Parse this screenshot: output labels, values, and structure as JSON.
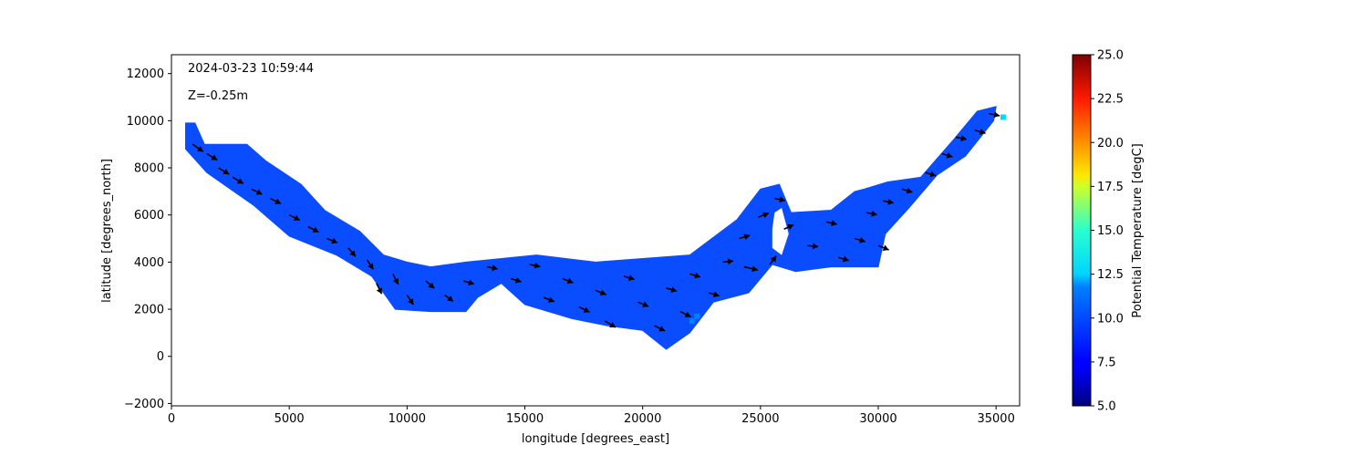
{
  "chart_data": {
    "type": "heatmap",
    "title": "",
    "xlabel": "longitude [degrees_east]",
    "ylabel": "latitude [degrees_north]",
    "xlim": [
      0,
      36000
    ],
    "ylim": [
      -2100,
      12800
    ],
    "x_ticks": [
      0,
      5000,
      10000,
      15000,
      20000,
      25000,
      30000,
      35000
    ],
    "y_ticks": [
      -2000,
      0,
      2000,
      4000,
      6000,
      8000,
      10000,
      12000
    ],
    "annotations": [
      "2024-03-23 10:59:44",
      "Z=-0.25m"
    ],
    "grid": false,
    "colorbar": {
      "label": "Potential Temperature [degC]",
      "range": [
        5.0,
        25.0
      ],
      "ticks": [
        "5.0",
        "7.5",
        "10.0",
        "12.5",
        "15.0",
        "17.5",
        "20.0",
        "22.5",
        "25.0"
      ],
      "colormap": "jet"
    },
    "field_color": "#0a4cff",
    "field_value_degC": 8.6,
    "domain_outline_top": [
      [
        600,
        9900
      ],
      [
        1000,
        9900
      ],
      [
        1400,
        9000
      ],
      [
        3200,
        9000
      ],
      [
        4000,
        8300
      ],
      [
        5500,
        7300
      ],
      [
        6500,
        6200
      ],
      [
        8000,
        5300
      ],
      [
        9000,
        4300
      ],
      [
        10000,
        4000
      ],
      [
        11000,
        3800
      ],
      [
        12500,
        4000
      ],
      [
        15500,
        4300
      ],
      [
        18000,
        4000
      ],
      [
        22000,
        4300
      ],
      [
        24000,
        5800
      ],
      [
        25000,
        7100
      ],
      [
        25800,
        7300
      ],
      [
        26300,
        6100
      ],
      [
        28000,
        6200
      ],
      [
        29000,
        7000
      ],
      [
        29400,
        7100
      ],
      [
        30400,
        7400
      ],
      [
        31800,
        7600
      ],
      [
        33200,
        9200
      ],
      [
        34200,
        10400
      ],
      [
        35000,
        10600
      ]
    ],
    "domain_outline_bottom": [
      [
        600,
        8800
      ],
      [
        1500,
        7800
      ],
      [
        3500,
        6400
      ],
      [
        5000,
        5100
      ],
      [
        7000,
        4300
      ],
      [
        8500,
        3400
      ],
      [
        9500,
        2000
      ],
      [
        11000,
        1900
      ],
      [
        12500,
        1900
      ],
      [
        13000,
        2500
      ],
      [
        14000,
        3100
      ],
      [
        15000,
        2200
      ],
      [
        17000,
        1600
      ],
      [
        18500,
        1300
      ],
      [
        20000,
        1100
      ],
      [
        21000,
        300
      ],
      [
        22000,
        1000
      ],
      [
        23000,
        2300
      ],
      [
        24500,
        2700
      ],
      [
        25500,
        3900
      ],
      [
        26500,
        3600
      ],
      [
        28000,
        3800
      ],
      [
        30000,
        3800
      ],
      [
        30300,
        5200
      ],
      [
        31300,
        6300
      ],
      [
        32500,
        7700
      ],
      [
        33700,
        8500
      ],
      [
        34900,
        10000
      ]
    ],
    "isolated_cells": [
      [
        35300,
        10150,
        11.8
      ],
      [
        22300,
        1700,
        10.0
      ],
      [
        22100,
        1500,
        10.0
      ]
    ],
    "vectors": [
      {
        "x": 900,
        "y": 9000,
        "u": 1,
        "v": -0.7
      },
      {
        "x": 1500,
        "y": 8600,
        "u": 1,
        "v": -0.6
      },
      {
        "x": 2000,
        "y": 8000,
        "u": 1,
        "v": -0.6
      },
      {
        "x": 2600,
        "y": 7600,
        "u": 1,
        "v": -0.6
      },
      {
        "x": 3400,
        "y": 7100,
        "u": 1,
        "v": -0.5
      },
      {
        "x": 4200,
        "y": 6700,
        "u": 1,
        "v": -0.5
      },
      {
        "x": 5000,
        "y": 6000,
        "u": 1,
        "v": -0.5
      },
      {
        "x": 5800,
        "y": 5500,
        "u": 1,
        "v": -0.5
      },
      {
        "x": 6600,
        "y": 5000,
        "u": 1,
        "v": -0.4
      },
      {
        "x": 7500,
        "y": 4600,
        "u": 0.7,
        "v": -0.8
      },
      {
        "x": 8300,
        "y": 4100,
        "u": 0.6,
        "v": -0.9
      },
      {
        "x": 8700,
        "y": 3100,
        "u": 0.5,
        "v": -1
      },
      {
        "x": 9400,
        "y": 3500,
        "u": 0.5,
        "v": -1
      },
      {
        "x": 10000,
        "y": 2600,
        "u": 0.6,
        "v": -0.9
      },
      {
        "x": 10800,
        "y": 3200,
        "u": 0.8,
        "v": -0.7
      },
      {
        "x": 11600,
        "y": 2600,
        "u": 0.8,
        "v": -0.6
      },
      {
        "x": 12400,
        "y": 3200,
        "u": 1,
        "v": -0.3
      },
      {
        "x": 13400,
        "y": 3800,
        "u": 1,
        "v": -0.2
      },
      {
        "x": 14400,
        "y": 3300,
        "u": 1,
        "v": -0.3
      },
      {
        "x": 15200,
        "y": 3900,
        "u": 1,
        "v": -0.2
      },
      {
        "x": 15800,
        "y": 2500,
        "u": 1,
        "v": -0.4
      },
      {
        "x": 16600,
        "y": 3300,
        "u": 1,
        "v": -0.4
      },
      {
        "x": 17300,
        "y": 2100,
        "u": 1,
        "v": -0.5
      },
      {
        "x": 18000,
        "y": 2800,
        "u": 1,
        "v": -0.4
      },
      {
        "x": 18400,
        "y": 1500,
        "u": 1,
        "v": -0.6
      },
      {
        "x": 19200,
        "y": 3400,
        "u": 1,
        "v": -0.3
      },
      {
        "x": 19800,
        "y": 2300,
        "u": 1,
        "v": -0.4
      },
      {
        "x": 20500,
        "y": 1300,
        "u": 1,
        "v": -0.5
      },
      {
        "x": 21000,
        "y": 2900,
        "u": 1,
        "v": -0.3
      },
      {
        "x": 21600,
        "y": 1900,
        "u": 1,
        "v": -0.5
      },
      {
        "x": 22000,
        "y": 3500,
        "u": 1,
        "v": -0.3
      },
      {
        "x": 22800,
        "y": 2700,
        "u": 1,
        "v": -0.3
      },
      {
        "x": 23400,
        "y": 4000,
        "u": 1,
        "v": 0.1
      },
      {
        "x": 24100,
        "y": 5000,
        "u": 1,
        "v": 0.3
      },
      {
        "x": 24300,
        "y": 3800,
        "u": 1.3,
        "v": -0.3
      },
      {
        "x": 24900,
        "y": 5900,
        "u": 1,
        "v": 0.4
      },
      {
        "x": 25400,
        "y": 3900,
        "u": 0.6,
        "v": 0.8
      },
      {
        "x": 25600,
        "y": 6700,
        "u": 1,
        "v": -0.2
      },
      {
        "x": 26000,
        "y": 5400,
        "u": 0.9,
        "v": 0.4
      },
      {
        "x": 27000,
        "y": 4700,
        "u": 1,
        "v": -0.1
      },
      {
        "x": 27800,
        "y": 5700,
        "u": 1,
        "v": -0.2
      },
      {
        "x": 28300,
        "y": 4200,
        "u": 1,
        "v": -0.3
      },
      {
        "x": 29000,
        "y": 5000,
        "u": 1,
        "v": -0.3
      },
      {
        "x": 29500,
        "y": 6100,
        "u": 1,
        "v": -0.2
      },
      {
        "x": 30000,
        "y": 4700,
        "u": 1,
        "v": -0.4
      },
      {
        "x": 30200,
        "y": 6600,
        "u": 1,
        "v": -0.2
      },
      {
        "x": 31000,
        "y": 7100,
        "u": 1,
        "v": -0.3
      },
      {
        "x": 32000,
        "y": 7800,
        "u": 1,
        "v": -0.3
      },
      {
        "x": 32700,
        "y": 8600,
        "u": 1,
        "v": -0.3
      },
      {
        "x": 33300,
        "y": 9300,
        "u": 1,
        "v": -0.2
      },
      {
        "x": 34100,
        "y": 9600,
        "u": 1,
        "v": -0.3
      },
      {
        "x": 34700,
        "y": 10300,
        "u": 1,
        "v": -0.2
      }
    ]
  }
}
